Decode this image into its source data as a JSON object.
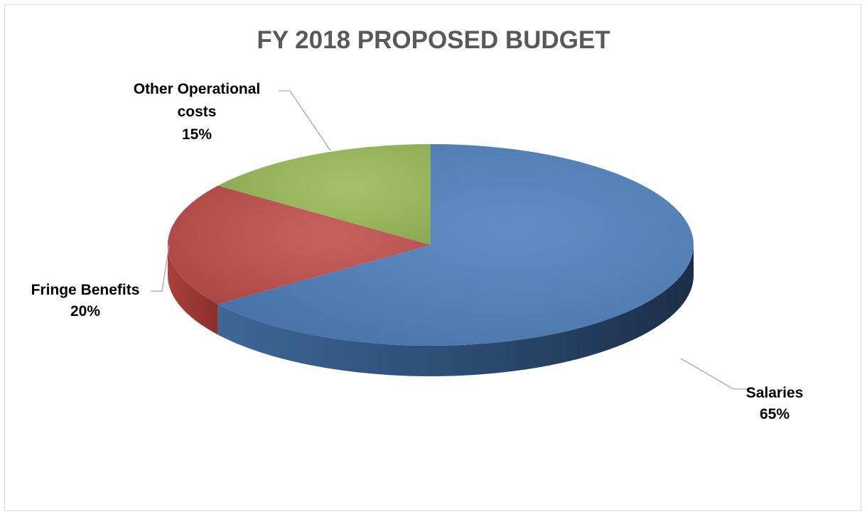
{
  "chart_data": {
    "type": "pie",
    "title": "FY 2018 PROPOSED BUDGET",
    "three_d": true,
    "slices": [
      {
        "name": "Salaries",
        "value": 65,
        "label": "65%",
        "color": "#4f81bd",
        "label_lines": [
          "Salaries",
          "65%"
        ]
      },
      {
        "name": "Fringe Benefits",
        "value": 20,
        "label": "20%",
        "color": "#c0504d",
        "label_lines": [
          "Fringe Benefits",
          "20%"
        ]
      },
      {
        "name": "Other Operational costs",
        "value": 15,
        "label": "15%",
        "color": "#9bbb59",
        "label_lines": [
          "Other Operational",
          "costs",
          "15%"
        ]
      }
    ],
    "colors": {
      "title": "#595959",
      "leader_line": "#a6a6a6",
      "border": "#d9d9d9"
    }
  }
}
